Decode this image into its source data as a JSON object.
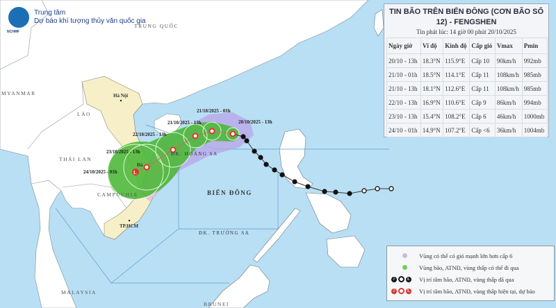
{
  "header": {
    "org_line1": "Trung tâm",
    "org_line2": "Dự báo khí tượng thủy văn quốc gia",
    "logo_text": "NCHMF"
  },
  "bulletin": {
    "title": "TIN BÃO TRÊN BIỂN ĐÔNG (CƠN BÃO SỐ 12) - FENGSHEN",
    "issued": "Tin phát lúc: 14 giờ 00 phút 20/10/2025",
    "columns": [
      "Ngày giờ",
      "Vĩ độ",
      "Kinh độ",
      "Cấp gió",
      "Vmax",
      "Pmin"
    ],
    "rows": [
      [
        "20/10 - 13h",
        "18.3°N",
        "115.9°E",
        "Cấp 10",
        "90km/h",
        "992mb"
      ],
      [
        "21/10 - 01h",
        "18.5°N",
        "114.1°E",
        "Cấp 11",
        "108km/h",
        "985mb"
      ],
      [
        "21/10 - 13h",
        "18.1°N",
        "112.6°E",
        "Cấp 11",
        "108km/h",
        "985mb"
      ],
      [
        "22/10 - 13h",
        "16.9°N",
        "110.6°E",
        "Cấp 9",
        "86km/h",
        "994mb"
      ],
      [
        "23/10 - 13h",
        "15.4°N",
        "108.2°E",
        "Cấp 6",
        "46km/h",
        "1000mb"
      ],
      [
        "24/10 - 01h",
        "14.9°N",
        "107.2°E",
        "Cấp <6",
        "36km/h",
        "1004mb"
      ]
    ]
  },
  "map_labels": {
    "trung_quoc": "TRUNG QUỐC",
    "myanmar": "MYANMAR",
    "lao": "LÀO",
    "thai_lan": "THÁI LAN",
    "campuchia": "CAMPUCHIA",
    "malaysia": "MALAYSIA",
    "brunei": "BRUNEI",
    "ha_noi": "Hà Nội",
    "da_nang": "Đà",
    "tphcm": "TP.HCM",
    "bien_dong": "BIỂN ĐÔNG",
    "hoang_sa": "ĐK. HOÀNG SA",
    "truong_sa": "ĐK. TRƯỜNG SA"
  },
  "forecast_labels": [
    "20/10/2025 - 13h",
    "21/10/2025 - 01h",
    "21/10/2025 - 13h",
    "22/10/2025 - 13h",
    "23/10/2025 - 13h",
    "24/10/2025 - 01h"
  ],
  "legend": {
    "items": [
      {
        "label": "Vùng có thể có gió mạnh lớn hơn cấp 6",
        "color": "#c9b8e6"
      },
      {
        "label": "Vùng bão, ATNĐ, vùng thấp có thể đi qua",
        "color": "#6fd15a"
      },
      {
        "label": "Vị trí tâm bão, ATNĐ, vùng thấp đã qua",
        "color": "#111111"
      },
      {
        "label": "Vị trí tâm bão, ATNĐ, vùng thấp hiện tại, dự báo",
        "color": "#e0322a"
      }
    ],
    "low_symbol": "L"
  },
  "colors": {
    "sea": "#b9dff4",
    "land": "#ffffff",
    "vietnam": "#f6efc8",
    "cone": "#4fb83a",
    "wind_zone": "#b9a4ea",
    "track_past": "#111111",
    "track_forecast": "#e0322a"
  }
}
